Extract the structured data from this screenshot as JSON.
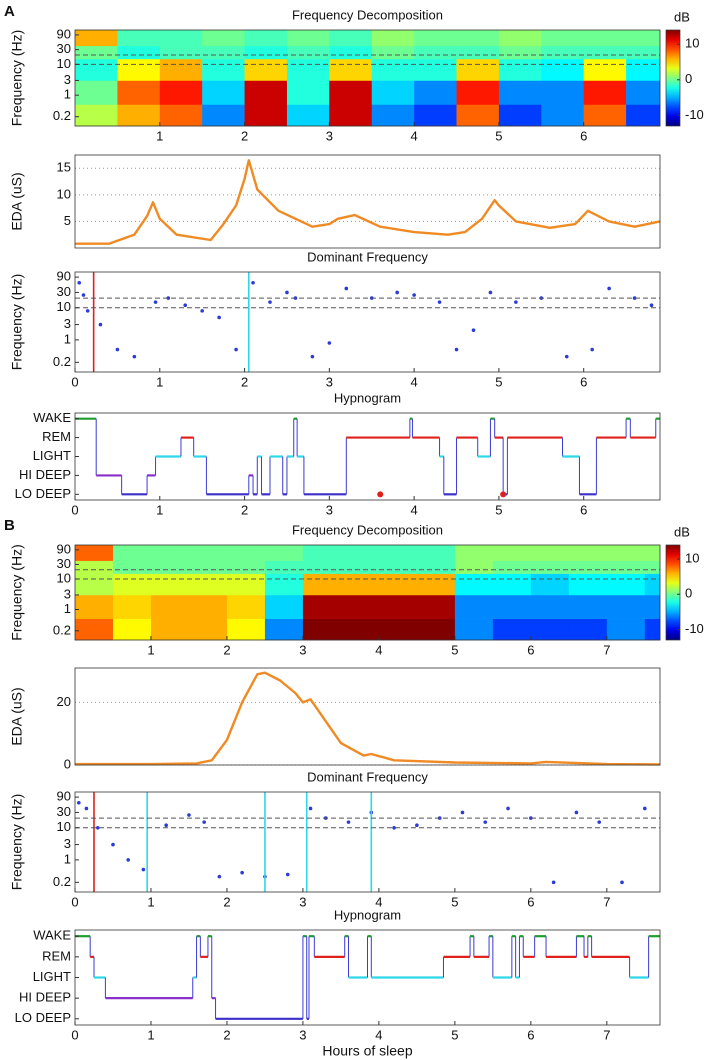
{
  "panel_labels": [
    "A",
    "B"
  ],
  "chart_data": [
    {
      "type": "heatmap",
      "title": "Frequency Decomposition",
      "ylabel": "Frequency (Hz)",
      "log_scale": true,
      "xlim": [
        0,
        6.9
      ],
      "xticks": [
        1,
        2,
        3,
        4,
        5,
        6
      ],
      "ylim": [
        0.1,
        130
      ],
      "yticks": [
        0.2,
        1,
        3,
        10,
        30,
        90
      ],
      "xbins": [
        0,
        0.5,
        1,
        1.5,
        2,
        2.5,
        3,
        3.5,
        4,
        4.5,
        5,
        5.5,
        6,
        6.5,
        6.9
      ],
      "ybins": [
        0.1,
        0.5,
        3,
        15,
        40,
        130
      ],
      "values": [
        [
          2,
          6,
          8,
          -6,
          12,
          -4,
          12,
          -6,
          -8,
          8,
          -8,
          -6,
          8,
          -8
        ],
        [
          0,
          8,
          10,
          -4,
          12,
          -2,
          12,
          -4,
          -6,
          10,
          -6,
          -6,
          10,
          -6
        ],
        [
          -2,
          4,
          6,
          -2,
          5,
          -2,
          5,
          -2,
          -2,
          5,
          -2,
          -3,
          4,
          -3
        ],
        [
          0,
          -2,
          -1,
          -1,
          -2,
          -1,
          -2,
          0,
          -1,
          -1,
          0,
          -1,
          -1,
          -1
        ],
        [
          6,
          -1,
          -1,
          0,
          -1,
          0,
          -1,
          1,
          0,
          0,
          1,
          0,
          0,
          0
        ]
      ],
      "hlines": [
        10,
        20
      ],
      "zlim": [
        -13,
        14
      ],
      "zticks": [
        10,
        0,
        -10
      ],
      "zlabel": "dB"
    },
    {
      "type": "line",
      "ylabel": "EDA (uS)",
      "color": "#f08a24",
      "grid": true,
      "xlim": [
        0,
        6.9
      ],
      "ylim": [
        0,
        17.5
      ],
      "yticks": [
        5,
        10,
        15
      ],
      "x": [
        0,
        0.4,
        0.7,
        0.85,
        0.92,
        1.0,
        1.2,
        1.6,
        1.75,
        1.9,
        2.0,
        2.05,
        2.15,
        2.4,
        2.8,
        3.0,
        3.1,
        3.3,
        3.6,
        4.0,
        4.4,
        4.6,
        4.8,
        4.95,
        5.0,
        5.2,
        5.6,
        5.9,
        6.05,
        6.3,
        6.6,
        6.9
      ],
      "y": [
        0.8,
        0.8,
        2.5,
        6,
        8.6,
        5.5,
        2.5,
        1.5,
        4.5,
        8,
        13,
        16.5,
        11,
        7,
        4,
        4.5,
        5.5,
        6.2,
        4,
        3,
        2.5,
        3,
        5.5,
        9,
        8,
        5,
        3.8,
        4.5,
        7,
        5,
        4,
        5
      ]
    },
    {
      "type": "scatter",
      "title": "Dominant Frequency",
      "ylabel": "Frequency (Hz)",
      "log_scale": true,
      "color": "#2b3bd6",
      "xlim": [
        0,
        6.9
      ],
      "xticks": [
        0,
        1,
        2,
        3,
        4,
        5,
        6
      ],
      "ylim": [
        0.1,
        130
      ],
      "yticks": [
        0.2,
        1,
        3,
        10,
        30,
        90
      ],
      "x": [
        0.05,
        0.1,
        0.15,
        0.3,
        0.5,
        0.7,
        0.95,
        1.1,
        1.3,
        1.5,
        1.7,
        1.9,
        2.1,
        2.3,
        2.5,
        2.6,
        2.8,
        3.0,
        3.2,
        3.5,
        3.8,
        4.0,
        4.3,
        4.5,
        4.7,
        4.9,
        5.2,
        5.5,
        5.8,
        6.1,
        6.3,
        6.6,
        6.8
      ],
      "y": [
        60,
        25,
        8,
        3,
        0.5,
        0.3,
        15,
        20,
        12,
        8,
        5,
        0.5,
        60,
        15,
        30,
        20,
        0.3,
        0.8,
        40,
        20,
        30,
        25,
        15,
        0.5,
        2,
        30,
        15,
        20,
        0.3,
        0.5,
        40,
        20,
        12
      ],
      "hlines": [
        10,
        20
      ],
      "vlines": [
        {
          "x": 0.22,
          "color": "#e0201b"
        },
        {
          "x": 2.05,
          "color": "#2fd8e8"
        }
      ]
    },
    {
      "type": "step",
      "title": "Hypnogram",
      "xlim": [
        0,
        6.9
      ],
      "xticks": [
        0,
        1,
        2,
        3,
        4,
        5,
        6
      ],
      "ylim": [
        0.7,
        5.3
      ],
      "yticks": [
        {
          "value": 1,
          "label": "LO DEEP"
        },
        {
          "value": 2,
          "label": "HI DEEP"
        },
        {
          "value": 3,
          "label": "LIGHT"
        },
        {
          "value": 4,
          "label": "REM"
        },
        {
          "value": 5,
          "label": "WAKE"
        }
      ],
      "stage_colors": [
        "#3b2fc9",
        "#8a2fc9",
        "#2fd8e8",
        "#e0201b",
        "#1e9e2a"
      ],
      "transition_color": "#3b3bd6",
      "x": [
        0,
        0.25,
        0.55,
        0.85,
        0.95,
        1.25,
        1.4,
        1.55,
        2.05,
        2.1,
        2.15,
        2.2,
        2.3,
        2.45,
        2.5,
        2.58,
        2.62,
        2.7,
        3.2,
        3.95,
        3.98,
        4.3,
        4.35,
        4.5,
        4.75,
        4.9,
        4.95,
        5.05,
        5.1,
        5.75,
        5.95,
        6.15,
        6.5,
        6.55,
        6.85
      ],
      "values": [
        5,
        2,
        1,
        2,
        3,
        4,
        3,
        1,
        2,
        1,
        3,
        1,
        3,
        1,
        3,
        5,
        3,
        1,
        4,
        5,
        4,
        3,
        1,
        4,
        3,
        5,
        4,
        1,
        4,
        3,
        1,
        4,
        5,
        4,
        5
      ],
      "events": [
        3.6,
        5.05
      ],
      "event_color": "#e0201b"
    },
    {
      "type": "heatmap",
      "title": "Frequency Decomposition",
      "ylabel": "Frequency (Hz)",
      "log_scale": true,
      "xlim": [
        0,
        7.7
      ],
      "xticks": [
        1,
        2,
        3,
        4,
        5,
        6,
        7
      ],
      "ylim": [
        0.1,
        130
      ],
      "yticks": [
        0.2,
        1,
        3,
        10,
        30,
        90
      ],
      "xbins": [
        0,
        0.5,
        1,
        1.5,
        2,
        2.5,
        3,
        3.5,
        4,
        4.5,
        5,
        5.5,
        6,
        6.5,
        7,
        7.5,
        7.7
      ],
      "ybins": [
        0.1,
        0.5,
        3,
        15,
        40,
        130
      ],
      "values": [
        [
          8,
          4,
          6,
          6,
          4,
          -6,
          14,
          14,
          14,
          14,
          -6,
          -8,
          -8,
          -8,
          -6,
          -8
        ],
        [
          6,
          5,
          6,
          6,
          5,
          -4,
          13,
          13,
          13,
          13,
          -6,
          -6,
          -6,
          -6,
          -6,
          -6
        ],
        [
          2,
          3,
          3,
          3,
          3,
          -2,
          6,
          6,
          6,
          6,
          -3,
          -3,
          -4,
          -3,
          -3,
          -4
        ],
        [
          2,
          0,
          0,
          0,
          0,
          -1,
          -1,
          -1,
          -1,
          -1,
          1,
          0,
          0,
          0,
          0,
          0
        ],
        [
          8,
          0,
          0,
          0,
          0,
          0,
          -1,
          -1,
          -1,
          -1,
          1,
          1,
          1,
          1,
          1,
          1
        ]
      ],
      "hlines": [
        10,
        20
      ],
      "zlim": [
        -13,
        14
      ],
      "zticks": [
        10,
        0,
        -10
      ],
      "zlabel": "dB"
    },
    {
      "type": "line",
      "ylabel": "EDA (uS)",
      "color": "#f08a24",
      "grid": true,
      "xlim": [
        0,
        7.7
      ],
      "ylim": [
        0,
        31
      ],
      "yticks": [
        0,
        20
      ],
      "x": [
        0,
        1,
        1.6,
        1.8,
        2.0,
        2.2,
        2.4,
        2.5,
        2.7,
        2.9,
        3.0,
        3.1,
        3.3,
        3.5,
        3.8,
        3.9,
        4.2,
        5,
        6,
        6.2,
        7,
        7.7
      ],
      "y": [
        0.3,
        0.3,
        0.5,
        1.5,
        8,
        20,
        29,
        29.5,
        27,
        23,
        20,
        21,
        14,
        7,
        3,
        3.5,
        1.5,
        0.8,
        0.5,
        1,
        0.3,
        0.2
      ]
    },
    {
      "type": "scatter",
      "title": "Dominant Frequency",
      "ylabel": "Frequency (Hz)",
      "log_scale": true,
      "color": "#2b3bd6",
      "xlim": [
        0,
        7.7
      ],
      "xticks": [
        0,
        1,
        2,
        3,
        4,
        5,
        6,
        7
      ],
      "ylim": [
        0.1,
        130
      ],
      "yticks": [
        0.2,
        1,
        3,
        10,
        30,
        90
      ],
      "x": [
        0.05,
        0.15,
        0.3,
        0.5,
        0.7,
        0.9,
        1.2,
        1.5,
        1.7,
        1.9,
        2.2,
        2.5,
        2.8,
        3.1,
        3.3,
        3.6,
        3.9,
        4.2,
        4.5,
        4.8,
        5.1,
        5.4,
        5.7,
        6.0,
        6.3,
        6.6,
        6.9,
        7.2,
        7.5
      ],
      "y": [
        60,
        40,
        10,
        3,
        1,
        0.5,
        12,
        25,
        15,
        0.3,
        0.4,
        0.3,
        0.35,
        40,
        20,
        15,
        30,
        10,
        12,
        20,
        30,
        15,
        40,
        20,
        0.2,
        30,
        15,
        0.2,
        40
      ],
      "hlines": [
        10,
        20
      ],
      "vlines": [
        {
          "x": 0.25,
          "color": "#e0201b"
        },
        {
          "x": 0.95,
          "color": "#2fd8e8"
        },
        {
          "x": 2.5,
          "color": "#2fd8e8"
        },
        {
          "x": 3.05,
          "color": "#2fd8e8"
        },
        {
          "x": 3.9,
          "color": "#2fd8e8"
        }
      ]
    },
    {
      "type": "step",
      "title": "Hypnogram",
      "xlabel": "Hours of sleep",
      "xlim": [
        0,
        7.7
      ],
      "xticks": [
        0,
        1,
        2,
        3,
        4,
        5,
        6,
        7
      ],
      "ylim": [
        0.7,
        5.3
      ],
      "yticks": [
        {
          "value": 1,
          "label": "LO DEEP"
        },
        {
          "value": 2,
          "label": "HI DEEP"
        },
        {
          "value": 3,
          "label": "LIGHT"
        },
        {
          "value": 4,
          "label": "REM"
        },
        {
          "value": 5,
          "label": "WAKE"
        }
      ],
      "stage_colors": [
        "#3b2fc9",
        "#8a2fc9",
        "#2fd8e8",
        "#e0201b",
        "#1e9e2a"
      ],
      "transition_color": "#3b3bd6",
      "x": [
        0,
        0.2,
        0.25,
        0.4,
        1.55,
        1.6,
        1.65,
        1.75,
        1.8,
        1.85,
        3.0,
        3.05,
        3.08,
        3.15,
        3.55,
        3.6,
        3.85,
        3.9,
        4.85,
        5.2,
        5.25,
        5.45,
        5.5,
        5.75,
        5.8,
        5.85,
        5.9,
        6.05,
        6.2,
        6.6,
        6.7,
        6.75,
        6.8,
        7.3,
        7.55
      ],
      "values": [
        5,
        4,
        3,
        2,
        3,
        5,
        4,
        5,
        2,
        1,
        5,
        1,
        5,
        4,
        5,
        3,
        5,
        3,
        4,
        5,
        4,
        5,
        3,
        5,
        3,
        5,
        4,
        5,
        4,
        5,
        4,
        5,
        4,
        3,
        5
      ]
    }
  ]
}
